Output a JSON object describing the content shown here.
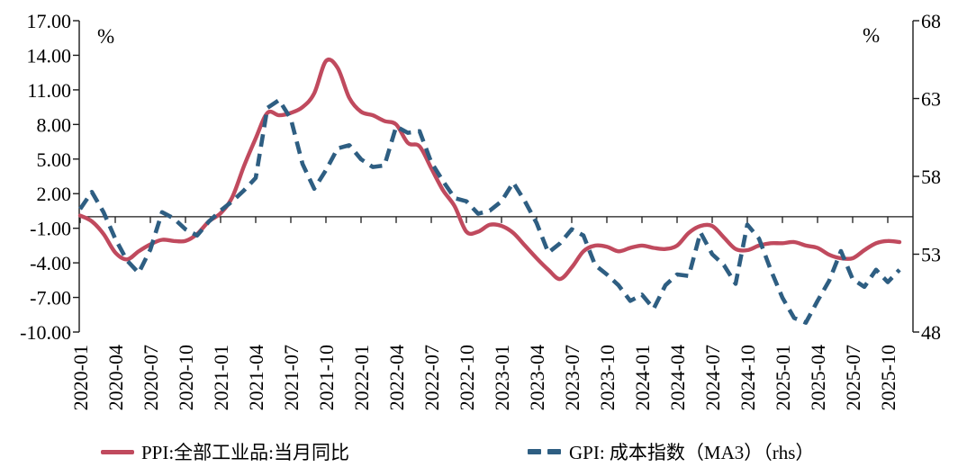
{
  "chart_data": {
    "type": "line",
    "x_range": {
      "start": "2020-01",
      "end": "2025-11",
      "freq": "monthly"
    },
    "x_tick_labels": [
      "2020-01",
      "2020-04",
      "2020-07",
      "2020-10",
      "2021-01",
      "2021-04",
      "2021-07",
      "2021-10",
      "2022-01",
      "2022-04",
      "2022-07",
      "2022-10",
      "2023-01",
      "2023-04",
      "2023-07",
      "2023-10",
      "2024-01",
      "2024-04",
      "2024-07",
      "2024-10",
      "2025-01",
      "2025-04",
      "2025-07",
      "2025-10"
    ],
    "left_axis": {
      "unit": "%",
      "max": 17,
      "min": -10,
      "tick_labels": [
        "17.00",
        "14.00",
        "11.00",
        "8.00",
        "5.00",
        "2.00",
        "-1.00",
        "-4.00",
        "-7.00",
        "-10.00"
      ]
    },
    "right_axis": {
      "unit": "%",
      "max": 68,
      "min": 48,
      "tick_labels": [
        "68",
        "63",
        "58",
        "53",
        "48"
      ]
    },
    "zero_line": true,
    "grid": false,
    "legend_position": "bottom-center",
    "series": [
      {
        "name": "PPI:全部工业品:当月同比",
        "axis": "left",
        "color": "#c04a5e",
        "style": "solid",
        "values": [
          0.1,
          -0.4,
          -1.5,
          -3.1,
          -3.7,
          -3.0,
          -2.4,
          -2.0,
          -2.1,
          -2.1,
          -1.5,
          -0.4,
          0.3,
          1.7,
          4.4,
          6.8,
          9.0,
          8.8,
          9.0,
          9.5,
          10.7,
          13.5,
          12.9,
          10.3,
          9.1,
          8.8,
          8.3,
          8.0,
          6.4,
          6.1,
          4.2,
          2.3,
          0.9,
          -1.3,
          -1.3,
          -0.7,
          -0.8,
          -1.4,
          -2.5,
          -3.6,
          -4.6,
          -5.4,
          -4.4,
          -3.0,
          -2.5,
          -2.6,
          -3.0,
          -2.7,
          -2.5,
          -2.7,
          -2.8,
          -2.5,
          -1.4,
          -0.8,
          -0.8,
          -1.8,
          -2.8,
          -2.9,
          -2.5,
          -2.3,
          -2.3,
          -2.2,
          -2.5,
          -2.7,
          -3.3,
          -3.6,
          -3.6,
          -2.9,
          -2.3,
          -2.1,
          -2.2
        ]
      },
      {
        "name": "GPI: 成本指数（MA3）（rhs）",
        "axis": "right",
        "color": "#2e5e82",
        "style": "dashed",
        "values": [
          55.9,
          57.0,
          55.7,
          54.0,
          52.6,
          51.8,
          53.3,
          55.7,
          55.3,
          54.6,
          54.2,
          55.1,
          55.8,
          56.4,
          57.1,
          57.9,
          62.4,
          62.9,
          61.7,
          58.8,
          57.2,
          58.4,
          59.8,
          60.0,
          59.1,
          58.6,
          58.7,
          61.2,
          60.8,
          60.9,
          58.9,
          57.7,
          56.6,
          56.4,
          55.6,
          55.8,
          56.4,
          57.6,
          56.4,
          55.0,
          53.1,
          53.7,
          54.6,
          54.2,
          52.3,
          51.7,
          51.0,
          50.0,
          50.4,
          49.5,
          51.0,
          51.7,
          51.6,
          54.4,
          53.0,
          52.3,
          51.1,
          54.9,
          54.0,
          52.0,
          50.2,
          48.9,
          48.6,
          50.0,
          51.3,
          53.2,
          51.4,
          50.9,
          52.0,
          51.2,
          52.0
        ]
      }
    ]
  },
  "legend": {
    "ppi_label": "PPI:全部工业品:当月同比",
    "gpi_label": "GPI: 成本指数（MA3）（rhs）"
  },
  "colors": {
    "ppi": "#c04a5e",
    "gpi": "#2e5e82",
    "axis": "#1a1a1a"
  }
}
